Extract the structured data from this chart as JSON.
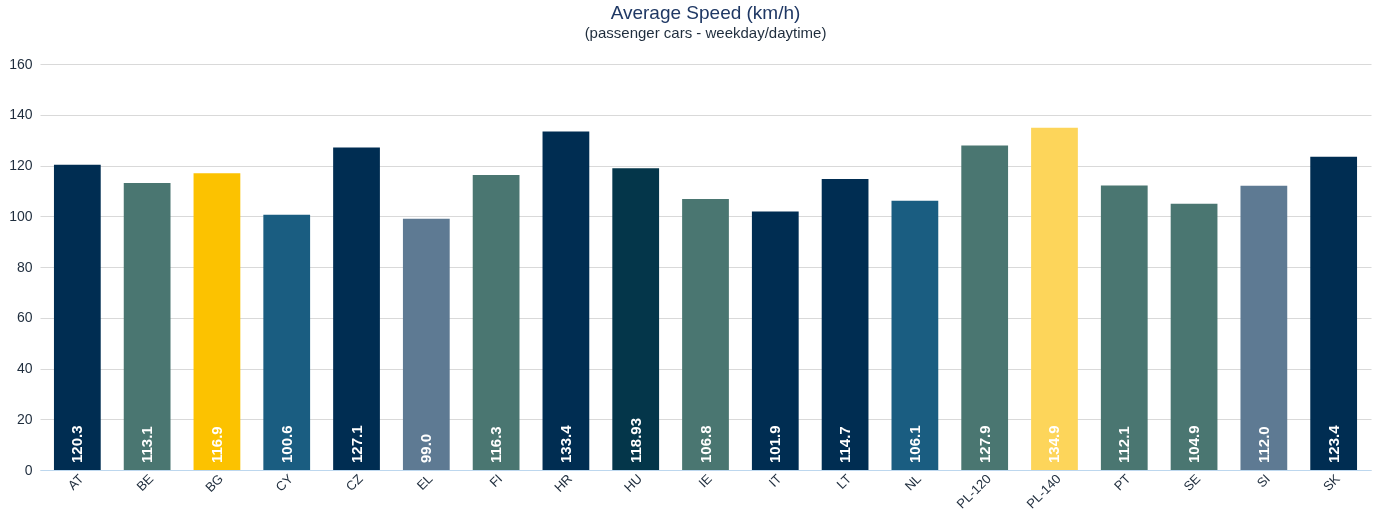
{
  "chart_data": {
    "type": "bar",
    "title": "Average Speed (km/h)",
    "subtitle": "(passenger cars - weekday/daytime)",
    "categories": [
      "AT",
      "BE",
      "BG",
      "CY",
      "CZ",
      "EL",
      "FI",
      "HR",
      "HU",
      "IE",
      "IT",
      "LT",
      "NL",
      "PL-120",
      "PL-140",
      "PT",
      "SE",
      "SI",
      "SK"
    ],
    "values": [
      120.3,
      113.1,
      116.9,
      100.6,
      127.1,
      99.0,
      116.3,
      133.4,
      118.93,
      106.8,
      101.9,
      114.7,
      106.1,
      127.9,
      134.9,
      112.1,
      104.9,
      112.0,
      123.4
    ],
    "value_labels": [
      "120.3",
      "113.1",
      "116.9",
      "100.6",
      "127.1",
      "99.0",
      "116.3",
      "133.4",
      "118.93",
      "106.8",
      "101.9",
      "114.7",
      "106.1",
      "127.9",
      "134.9",
      "112.1",
      "104.9",
      "112.0",
      "123.4"
    ],
    "colors": [
      "#002d52",
      "#4a7671",
      "#fcc200",
      "#1a5d81",
      "#002d52",
      "#5e7a93",
      "#4a7671",
      "#002d52",
      "#04364a",
      "#4a7671",
      "#002d52",
      "#002d52",
      "#1a5d81",
      "#4a7671",
      "#fdd55a",
      "#4a7671",
      "#4a7671",
      "#5e7a93",
      "#002d52"
    ],
    "ylim": [
      0,
      160
    ],
    "yticks": [
      0,
      20,
      40,
      60,
      80,
      100,
      120,
      140,
      160
    ],
    "grid": "y"
  }
}
